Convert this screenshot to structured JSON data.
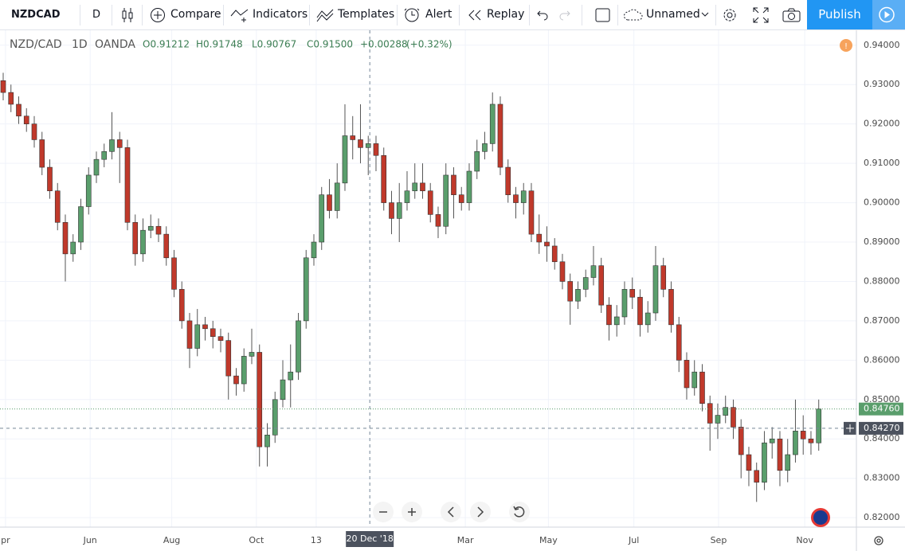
{
  "toolbar": {
    "symbol": "NZDCAD",
    "interval": "D",
    "compare": "Compare",
    "indicators": "Indicators",
    "templates": "Templates",
    "alert": "Alert",
    "replay": "Replay",
    "layout": "Unnamed",
    "publish": "Publish"
  },
  "legend": {
    "symbol": "NZD/CAD",
    "interval": "1D",
    "source": "OANDA",
    "open": "O0.91212",
    "high": "H0.91748",
    "low": "L0.90767",
    "close": "C0.91500",
    "change": "+0.00288",
    "change_pct": "(+0.32%)"
  },
  "chart_data": {
    "type": "candlestick",
    "up_color": "#5a9e6c",
    "down_color": "#c0392b",
    "grid": true,
    "ylim": [
      0.8176,
      0.9438
    ],
    "yticks": [
      {
        "value": 0.82,
        "label": "0.82000"
      },
      {
        "value": 0.83,
        "label": "0.83000"
      },
      {
        "value": 0.84,
        "label": "0.84000"
      },
      {
        "value": 0.85,
        "label": "0.85000"
      },
      {
        "value": 0.86,
        "label": "0.86000"
      },
      {
        "value": 0.87,
        "label": "0.87000"
      },
      {
        "value": 0.88,
        "label": "0.88000"
      },
      {
        "value": 0.89,
        "label": "0.89000"
      },
      {
        "value": 0.9,
        "label": "0.90000"
      },
      {
        "value": 0.91,
        "label": "0.91000"
      },
      {
        "value": 0.92,
        "label": "0.92000"
      },
      {
        "value": 0.93,
        "label": "0.93000"
      },
      {
        "value": 0.94,
        "label": "0.94000"
      }
    ],
    "xlim": [
      -0.41,
      109.85
    ],
    "xticks": [
      {
        "value": 0.3,
        "label": "pr"
      },
      {
        "value": 11.2,
        "label": "Jun"
      },
      {
        "value": 21.7,
        "label": "Aug"
      },
      {
        "value": 32.6,
        "label": "Oct"
      },
      {
        "value": 40.3,
        "label": "13"
      },
      {
        "value": 59.5,
        "label": "Mar"
      },
      {
        "value": 70.2,
        "label": "May"
      },
      {
        "value": 81.2,
        "label": "Jul"
      },
      {
        "value": 92.1,
        "label": "Sep"
      },
      {
        "value": 103.2,
        "label": "Nov"
      }
    ],
    "last_price": {
      "value": 0.8476,
      "label": "0.84760",
      "color": "#5a9e6c"
    },
    "crosshair": {
      "x": {
        "value": 47.2,
        "label": "20 Dec '18"
      },
      "y": {
        "value": 0.8427,
        "label": "0.84270"
      }
    },
    "ohlc": [
      [
        0.931,
        0.933,
        0.926,
        0.928
      ],
      [
        0.928,
        0.93,
        0.923,
        0.925
      ],
      [
        0.925,
        0.927,
        0.92,
        0.922
      ],
      [
        0.922,
        0.924,
        0.918,
        0.92
      ],
      [
        0.92,
        0.922,
        0.914,
        0.916
      ],
      [
        0.916,
        0.918,
        0.907,
        0.909
      ],
      [
        0.909,
        0.911,
        0.901,
        0.903
      ],
      [
        0.903,
        0.905,
        0.893,
        0.895
      ],
      [
        0.895,
        0.897,
        0.88,
        0.887
      ],
      [
        0.887,
        0.892,
        0.885,
        0.89
      ],
      [
        0.89,
        0.901,
        0.888,
        0.899
      ],
      [
        0.899,
        0.909,
        0.897,
        0.907
      ],
      [
        0.907,
        0.913,
        0.905,
        0.911
      ],
      [
        0.911,
        0.915,
        0.909,
        0.913
      ],
      [
        0.913,
        0.923,
        0.911,
        0.916
      ],
      [
        0.916,
        0.918,
        0.905,
        0.914
      ],
      [
        0.914,
        0.916,
        0.893,
        0.895
      ],
      [
        0.895,
        0.897,
        0.884,
        0.887
      ],
      [
        0.887,
        0.896,
        0.885,
        0.893
      ],
      [
        0.893,
        0.897,
        0.891,
        0.894
      ],
      [
        0.894,
        0.896,
        0.89,
        0.892
      ],
      [
        0.892,
        0.894,
        0.884,
        0.886
      ],
      [
        0.886,
        0.888,
        0.876,
        0.878
      ],
      [
        0.878,
        0.88,
        0.868,
        0.87
      ],
      [
        0.87,
        0.872,
        0.858,
        0.863
      ],
      [
        0.863,
        0.873,
        0.861,
        0.869
      ],
      [
        0.869,
        0.871,
        0.865,
        0.868
      ],
      [
        0.868,
        0.87,
        0.863,
        0.866
      ],
      [
        0.866,
        0.868,
        0.862,
        0.865
      ],
      [
        0.865,
        0.867,
        0.85,
        0.856
      ],
      [
        0.856,
        0.858,
        0.851,
        0.854
      ],
      [
        0.854,
        0.863,
        0.852,
        0.861
      ],
      [
        0.861,
        0.868,
        0.859,
        0.862
      ],
      [
        0.862,
        0.864,
        0.833,
        0.838
      ],
      [
        0.838,
        0.844,
        0.833,
        0.841
      ],
      [
        0.841,
        0.852,
        0.839,
        0.85
      ],
      [
        0.85,
        0.86,
        0.848,
        0.855
      ],
      [
        0.855,
        0.864,
        0.848,
        0.857
      ],
      [
        0.857,
        0.872,
        0.855,
        0.87
      ],
      [
        0.87,
        0.888,
        0.868,
        0.886
      ],
      [
        0.886,
        0.892,
        0.884,
        0.89
      ],
      [
        0.89,
        0.904,
        0.888,
        0.902
      ],
      [
        0.902,
        0.906,
        0.896,
        0.898
      ],
      [
        0.898,
        0.91,
        0.896,
        0.905
      ],
      [
        0.905,
        0.925,
        0.903,
        0.917
      ],
      [
        0.917,
        0.922,
        0.911,
        0.916
      ],
      [
        0.916,
        0.925,
        0.91,
        0.914
      ],
      [
        0.914,
        0.917,
        0.907,
        0.915
      ],
      [
        0.915,
        0.917,
        0.908,
        0.912
      ],
      [
        0.912,
        0.914,
        0.898,
        0.9
      ],
      [
        0.9,
        0.903,
        0.892,
        0.896
      ],
      [
        0.896,
        0.905,
        0.89,
        0.9
      ],
      [
        0.9,
        0.908,
        0.898,
        0.903
      ],
      [
        0.903,
        0.91,
        0.901,
        0.905
      ],
      [
        0.905,
        0.91,
        0.901,
        0.903
      ],
      [
        0.903,
        0.905,
        0.895,
        0.897
      ],
      [
        0.897,
        0.899,
        0.891,
        0.894
      ],
      [
        0.894,
        0.91,
        0.892,
        0.907
      ],
      [
        0.907,
        0.909,
        0.896,
        0.902
      ],
      [
        0.902,
        0.904,
        0.898,
        0.9
      ],
      [
        0.9,
        0.91,
        0.898,
        0.908
      ],
      [
        0.908,
        0.916,
        0.906,
        0.913
      ],
      [
        0.913,
        0.918,
        0.911,
        0.915
      ],
      [
        0.915,
        0.928,
        0.913,
        0.925
      ],
      [
        0.925,
        0.927,
        0.907,
        0.909
      ],
      [
        0.909,
        0.911,
        0.9,
        0.902
      ],
      [
        0.902,
        0.904,
        0.896,
        0.9
      ],
      [
        0.9,
        0.905,
        0.897,
        0.903
      ],
      [
        0.903,
        0.905,
        0.89,
        0.892
      ],
      [
        0.892,
        0.897,
        0.887,
        0.89
      ],
      [
        0.89,
        0.894,
        0.885,
        0.889
      ],
      [
        0.889,
        0.891,
        0.883,
        0.885
      ],
      [
        0.885,
        0.887,
        0.878,
        0.88
      ],
      [
        0.88,
        0.882,
        0.869,
        0.875
      ],
      [
        0.875,
        0.88,
        0.873,
        0.878
      ],
      [
        0.878,
        0.883,
        0.876,
        0.881
      ],
      [
        0.881,
        0.889,
        0.879,
        0.884
      ],
      [
        0.884,
        0.886,
        0.872,
        0.874
      ],
      [
        0.874,
        0.876,
        0.865,
        0.869
      ],
      [
        0.869,
        0.874,
        0.866,
        0.871
      ],
      [
        0.871,
        0.88,
        0.869,
        0.878
      ],
      [
        0.878,
        0.881,
        0.873,
        0.876
      ],
      [
        0.876,
        0.878,
        0.866,
        0.869
      ],
      [
        0.869,
        0.875,
        0.867,
        0.872
      ],
      [
        0.872,
        0.889,
        0.87,
        0.884
      ],
      [
        0.884,
        0.886,
        0.876,
        0.878
      ],
      [
        0.878,
        0.88,
        0.867,
        0.869
      ],
      [
        0.869,
        0.871,
        0.857,
        0.86
      ],
      [
        0.86,
        0.862,
        0.85,
        0.853
      ],
      [
        0.853,
        0.86,
        0.851,
        0.857
      ],
      [
        0.857,
        0.859,
        0.847,
        0.849
      ],
      [
        0.849,
        0.851,
        0.837,
        0.844
      ],
      [
        0.844,
        0.849,
        0.84,
        0.846
      ],
      [
        0.846,
        0.851,
        0.844,
        0.848
      ],
      [
        0.848,
        0.85,
        0.84,
        0.843
      ],
      [
        0.843,
        0.845,
        0.83,
        0.836
      ],
      [
        0.836,
        0.838,
        0.828,
        0.832
      ],
      [
        0.832,
        0.834,
        0.824,
        0.829
      ],
      [
        0.829,
        0.842,
        0.827,
        0.839
      ],
      [
        0.839,
        0.843,
        0.835,
        0.84
      ],
      [
        0.84,
        0.842,
        0.828,
        0.832
      ],
      [
        0.832,
        0.84,
        0.829,
        0.836
      ],
      [
        0.836,
        0.85,
        0.834,
        0.842
      ],
      [
        0.842,
        0.846,
        0.836,
        0.84
      ],
      [
        0.84,
        0.842,
        0.836,
        0.839
      ],
      [
        0.839,
        0.85,
        0.837,
        0.8476
      ]
    ]
  }
}
